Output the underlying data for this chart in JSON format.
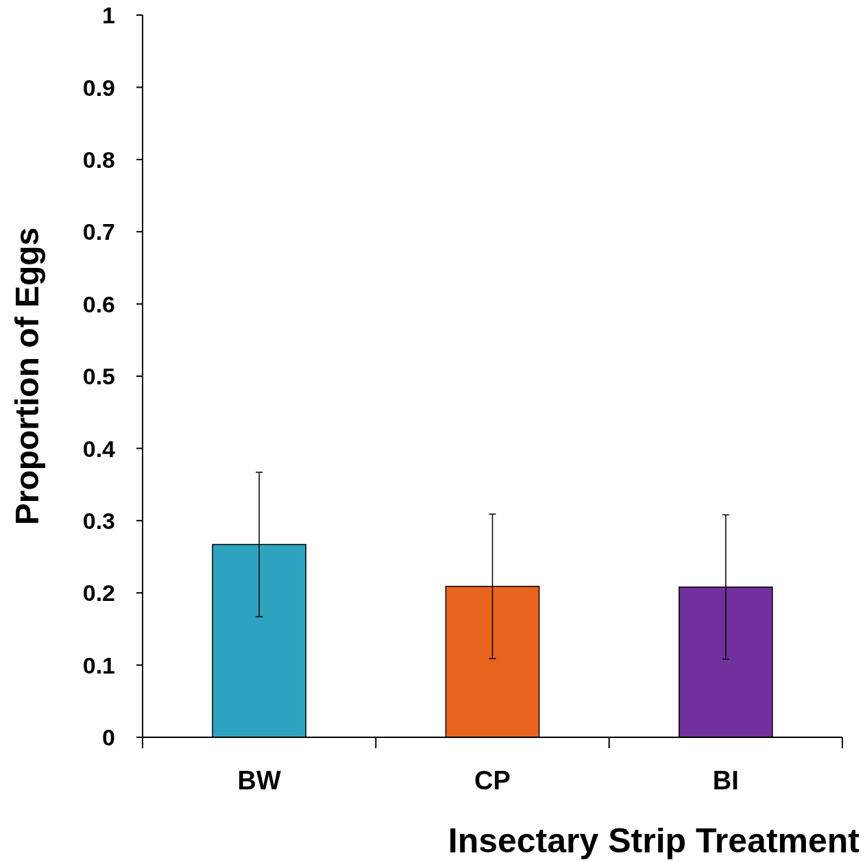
{
  "chart_data": {
    "type": "bar",
    "xlabel": "Insectary Strip Treatment",
    "ylabel": "Proportion of Eggs",
    "categories": [
      "BW",
      "CP",
      "BI"
    ],
    "values": [
      0.267,
      0.209,
      0.208
    ],
    "colors": [
      "#2ea3c0",
      "#e8641f",
      "#71309b"
    ],
    "errors": [
      0.1,
      0.1,
      0.1
    ],
    "ylim": [
      0,
      1
    ],
    "yticks": [
      0,
      0.1,
      0.2,
      0.3,
      0.4,
      0.5,
      0.6,
      0.7,
      0.8,
      0.9,
      1
    ],
    "grid": false
  }
}
